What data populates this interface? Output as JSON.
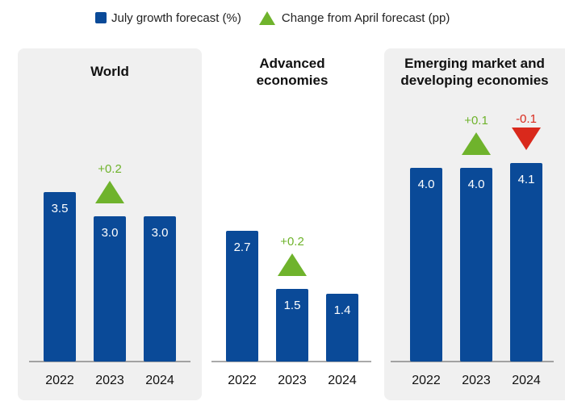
{
  "legend": {
    "items": [
      {
        "label": "July growth forecast (%)",
        "icon": "blue-square-icon"
      },
      {
        "label": "Change from April forecast (pp)",
        "icon": "green-triangle-icon"
      }
    ]
  },
  "colors": {
    "bar": "#0a4a98",
    "up": "#6fb32c",
    "down": "#d9291c",
    "panel_bg": "#f0f0f0"
  },
  "chart_data": [
    {
      "type": "bar",
      "title": "World",
      "categories": [
        "2022",
        "2023",
        "2024"
      ],
      "values": [
        3.5,
        3.0,
        3.0
      ],
      "value_labels": [
        "3.5",
        "3.0",
        "3.0"
      ],
      "changes": [
        null,
        0.2,
        null
      ],
      "change_labels": [
        null,
        "+0.2",
        null
      ],
      "shaded": true,
      "ylim": [
        0,
        5
      ]
    },
    {
      "type": "bar",
      "title": "Advanced economies",
      "categories": [
        "2022",
        "2023",
        "2024"
      ],
      "values": [
        2.7,
        1.5,
        1.4
      ],
      "value_labels": [
        "2.7",
        "1.5",
        "1.4"
      ],
      "changes": [
        null,
        0.2,
        null
      ],
      "change_labels": [
        null,
        "+0.2",
        null
      ],
      "shaded": false,
      "ylim": [
        0,
        5
      ]
    },
    {
      "type": "bar",
      "title": "Emerging market and developing economies",
      "categories": [
        "2022",
        "2023",
        "2024"
      ],
      "values": [
        4.0,
        4.0,
        4.1
      ],
      "value_labels": [
        "4.0",
        "4.0",
        "4.1"
      ],
      "changes": [
        null,
        0.1,
        -0.1
      ],
      "change_labels": [
        null,
        "+0.1",
        "-0.1"
      ],
      "shaded": true,
      "ylim": [
        0,
        5
      ]
    }
  ]
}
